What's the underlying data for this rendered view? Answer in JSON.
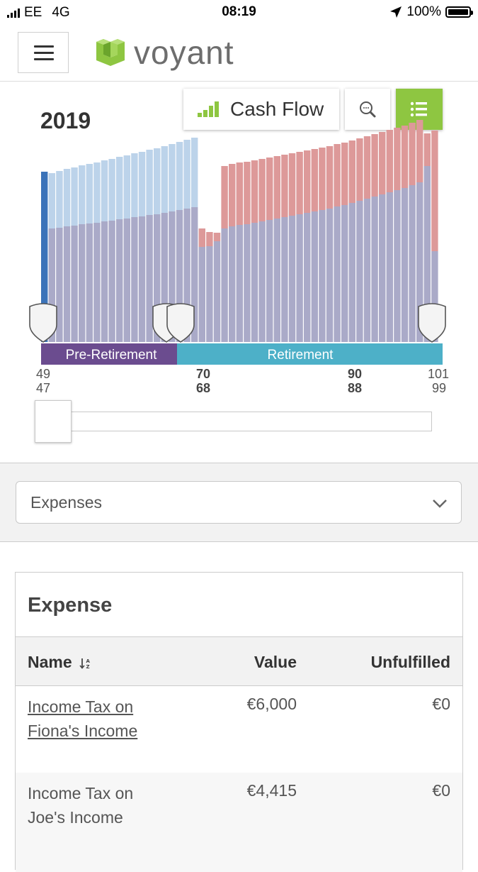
{
  "status_bar": {
    "carrier": "EE",
    "network": "4G",
    "time": "08:19",
    "battery": "100%"
  },
  "header": {
    "logo_text": "voyant",
    "menu_icon": "hamburger-icon"
  },
  "chart_controls": {
    "year": "2019",
    "cashflow_label": "Cash Flow",
    "zoom_icon": "search-icon",
    "list_icon": "list-icon"
  },
  "colors": {
    "accent_green": "#8ec641",
    "income_blue_light": "#bcd3ea",
    "income_blue_dark": "#3b73b9",
    "base_purple": "#aaaac8",
    "shortfall_red": "#dd9999",
    "pre_retirement": "#6b4c8f",
    "retirement": "#4db0c8"
  },
  "chart_data": {
    "type": "bar",
    "x": [
      1,
      2,
      3,
      4,
      5,
      6,
      7,
      8,
      9,
      10,
      11,
      12,
      13,
      14,
      15,
      16,
      17,
      18,
      19,
      20,
      21,
      22,
      23,
      24,
      25,
      26,
      27,
      28,
      29,
      30,
      31,
      32,
      33,
      34,
      35,
      36,
      37,
      38,
      39,
      40,
      41,
      42,
      43,
      44,
      45,
      46,
      47,
      48,
      49,
      50,
      51,
      52,
      53
    ],
    "series": [
      {
        "values": [
          240,
          160,
          161,
          163,
          164,
          166,
          167,
          168,
          170,
          171,
          173,
          174,
          176,
          177,
          179,
          180,
          182,
          184,
          186,
          188,
          190,
          134,
          135,
          142,
          160,
          163,
          165,
          166,
          168,
          170,
          172,
          174,
          176,
          178,
          180,
          182,
          184,
          186,
          188,
          191,
          193,
          196,
          199,
          202,
          205,
          208,
          211,
          214,
          217,
          221,
          225,
          248,
          128
        ]
      },
      {
        "values": [
          0,
          78,
          80,
          81,
          82,
          83,
          84,
          85,
          86,
          87,
          88,
          89,
          90,
          91,
          92,
          93,
          94,
          95,
          96,
          97,
          98,
          0,
          0,
          0,
          0,
          0,
          0,
          0,
          0,
          0,
          0,
          0,
          0,
          0,
          0,
          0,
          0,
          0,
          0,
          0,
          0,
          0,
          0,
          0,
          0,
          0,
          0,
          0,
          0,
          0,
          0,
          0,
          0
        ]
      },
      {
        "values": [
          0,
          0,
          0,
          0,
          0,
          0,
          0,
          0,
          0,
          0,
          0,
          0,
          0,
          0,
          0,
          0,
          0,
          0,
          0,
          0,
          0,
          26,
          20,
          12,
          88,
          88,
          88,
          88,
          88,
          88,
          88,
          88,
          88,
          88,
          88,
          88,
          88,
          88,
          88,
          88,
          88,
          88,
          88,
          88,
          88,
          88,
          88,
          88,
          88,
          88,
          88,
          46,
          170
        ]
      }
    ],
    "phases": [
      {
        "label": "Pre-Retirement"
      },
      {
        "label": "Retirement"
      }
    ],
    "ages": [
      {
        "top": "49",
        "bottom": "47",
        "bold": false
      },
      {
        "top": "70",
        "bottom": "68",
        "bold": true
      },
      {
        "top": "90",
        "bottom": "88",
        "bold": true
      },
      {
        "top": "101",
        "bottom": "99",
        "bold": false
      }
    ]
  },
  "filter": {
    "selected": "Expenses"
  },
  "table": {
    "title": "Expense",
    "columns": {
      "name": "Name",
      "value": "Value",
      "unfulfilled": "Unfulfilled"
    },
    "rows": [
      {
        "name": "Income Tax on Fiona's Income",
        "value": "€6,000",
        "unfulfilled": "€0",
        "link": true
      },
      {
        "name": "Income Tax on Joe's Income",
        "value": "€4,415",
        "unfulfilled": "€0",
        "link": false
      }
    ]
  }
}
